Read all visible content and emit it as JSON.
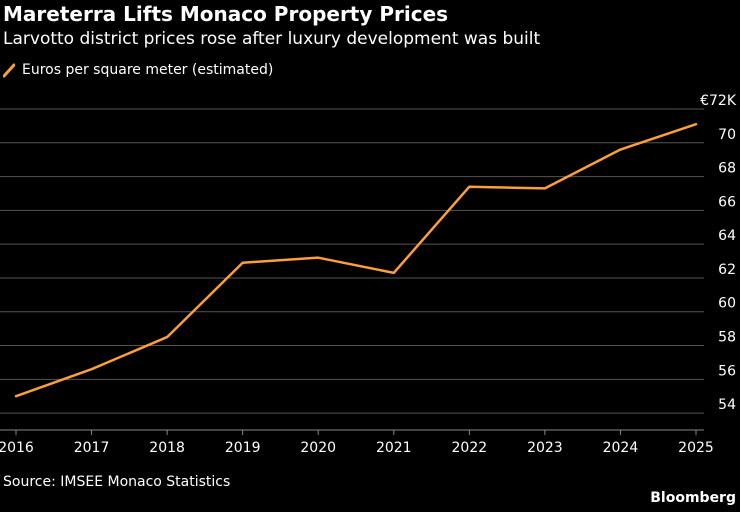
{
  "header": {
    "title": "Mareterra Lifts Monaco Property Prices",
    "subtitle": "Larvotto district prices rose after luxury development was built"
  },
  "footer": {
    "source": "Source: IMSEE Monaco Statistics",
    "brand": "Bloomberg"
  },
  "colors": {
    "background": "#000000",
    "series": "#fb9f3a",
    "grid": "#555555",
    "text": "#ffffff"
  },
  "chart_data": {
    "type": "line",
    "title": "Mareterra Lifts Monaco Property Prices",
    "subtitle": "Larvotto district prices rose after luxury development was built",
    "x": [
      2016,
      2017,
      2018,
      2019,
      2020,
      2021,
      2022,
      2023,
      2024,
      2025
    ],
    "series": [
      {
        "name": "Euros per square meter (estimated)",
        "values": [
          55.0,
          56.6,
          58.5,
          62.9,
          63.2,
          62.3,
          67.4,
          67.3,
          69.6,
          71.1
        ]
      }
    ],
    "ylim": [
      53,
      72
    ],
    "yticks": [
      54,
      56,
      58,
      60,
      62,
      64,
      66,
      68,
      70,
      72
    ],
    "ytick_labels": [
      "54",
      "56",
      "58",
      "60",
      "62",
      "64",
      "66",
      "68",
      "70",
      "€72K"
    ],
    "y_axis_side": "right",
    "grid": true,
    "legend": "top-left",
    "source": "Source: IMSEE Monaco Statistics"
  }
}
